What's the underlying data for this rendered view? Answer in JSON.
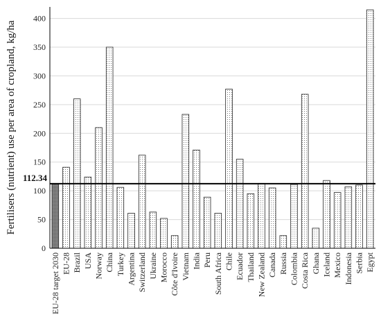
{
  "chart_data": {
    "type": "bar",
    "ylabel": "Fertilisers (nutrient) use per area of cropland, kg/ha",
    "ylim": [
      0,
      420
    ],
    "yticks": [
      0,
      50,
      100,
      150,
      200,
      250,
      300,
      350,
      400
    ],
    "grid": true,
    "reference_line": {
      "value": 112.34,
      "label": "112.34"
    },
    "categories": [
      "EU-28 target 2030",
      "EU-28",
      "Brazil",
      "USA",
      "Norway",
      "China",
      "Turkey",
      "Argentina",
      "Switzerland",
      "Ukraine",
      "Morocco",
      "Côte d'Ivoire",
      "Vietnam",
      "India",
      "Peru",
      "South Africa",
      "Chile",
      "Ecuador",
      "Thailand",
      "New Zealand",
      "Canada",
      "Russia",
      "Colombia",
      "Costa Rica",
      "Ghana",
      "Iceland",
      "Mexico",
      "Indonesia",
      "Serbia",
      "Egypt"
    ],
    "values": [
      112.34,
      141,
      260,
      124,
      210,
      350,
      106,
      61,
      162,
      63,
      52,
      22,
      233,
      171,
      89,
      61,
      277,
      155,
      95,
      113,
      105,
      22,
      111,
      268,
      35,
      118,
      97,
      107,
      110,
      415
    ],
    "highlight_category": "EU-28 target 2030"
  },
  "colors": {
    "target_bar": "#7a7a7a",
    "bar_fill": "#ffffff",
    "bar_dots": "#555555",
    "grid": "#d9d9d9",
    "axis": "#000000"
  }
}
